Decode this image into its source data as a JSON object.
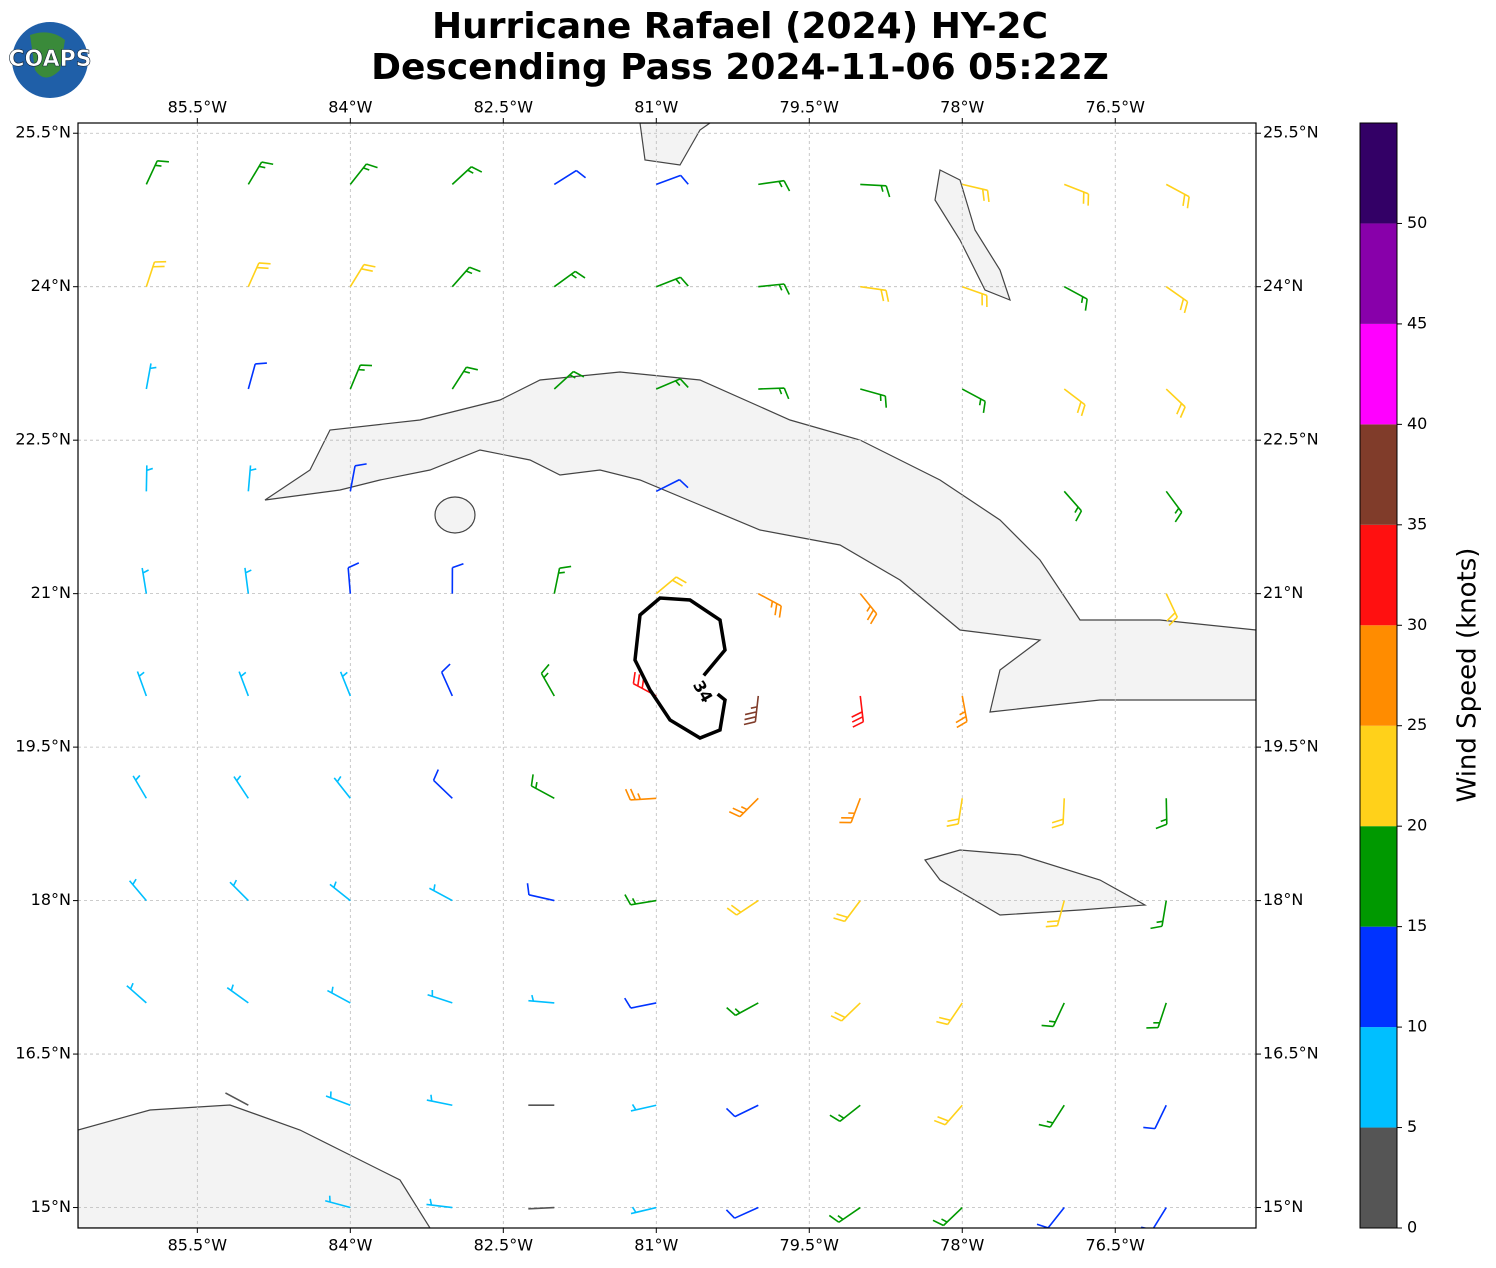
{
  "logo": "COAPS",
  "chart_data": {
    "type": "barbs",
    "title": [
      "Hurricane Rafael (2024) HY-2C",
      "Descending Pass 2024-11-06 05:22Z"
    ],
    "xlim": [
      -86.67,
      -75.12
    ],
    "xticks": [
      {
        "value": -85.5,
        "label": "85.5°W"
      },
      {
        "value": -84,
        "label": "84°W"
      },
      {
        "value": -82.5,
        "label": "82.5°W"
      },
      {
        "value": -81,
        "label": "81°W"
      },
      {
        "value": -79.5,
        "label": "79.5°W"
      },
      {
        "value": -78,
        "label": "78°W"
      },
      {
        "value": -76.5,
        "label": "76.5°W"
      }
    ],
    "ylim": [
      14.8,
      25.6
    ],
    "yticks": [
      {
        "value": 15,
        "label": "15°N"
      },
      {
        "value": 16.5,
        "label": "16.5°N"
      },
      {
        "value": 18,
        "label": "18°N"
      },
      {
        "value": 19.5,
        "label": "19.5°N"
      },
      {
        "value": 21,
        "label": "21°N"
      },
      {
        "value": 22.5,
        "label": "22.5°N"
      },
      {
        "value": 24,
        "label": "24°N"
      },
      {
        "value": 25.5,
        "label": "25.5°N"
      }
    ],
    "grid": true,
    "barbs": {
      "center": [
        -80.7,
        20.3
      ],
      "lon": [
        -86,
        -85,
        -84,
        -83,
        -82,
        -81,
        -80,
        -79,
        -78,
        -77,
        -76
      ],
      "lat": [
        25,
        24,
        23,
        22,
        21,
        20,
        19,
        18,
        17,
        16,
        15
      ],
      "speed": [
        [
          18,
          17,
          17,
          17,
          12,
          12,
          17,
          17,
          22,
          22,
          22
        ],
        [
          22,
          23,
          22,
          17,
          17,
          17,
          17,
          22,
          22,
          17,
          22
        ],
        [
          8,
          13,
          17,
          17,
          17,
          17,
          17,
          17,
          17,
          22,
          22
        ],
        [
          8,
          8,
          12,
          null,
          null,
          12,
          null,
          null,
          null,
          17,
          17
        ],
        [
          8,
          8,
          12,
          12,
          17,
          22,
          27,
          27,
          null,
          null,
          22
        ],
        [
          8,
          8,
          8,
          12,
          17,
          32,
          38,
          32,
          27,
          null,
          null
        ],
        [
          8,
          8,
          8,
          12,
          17,
          27,
          27,
          27,
          22,
          22,
          17
        ],
        [
          8,
          8,
          8,
          8,
          12,
          17,
          22,
          22,
          null,
          22,
          17
        ],
        [
          8,
          8,
          8,
          8,
          8,
          12,
          17,
          22,
          22,
          17,
          17
        ],
        [
          null,
          3,
          8,
          8,
          3,
          8,
          12,
          17,
          22,
          17,
          12
        ],
        [
          null,
          null,
          8,
          8,
          3,
          8,
          12,
          17,
          17,
          12,
          12
        ]
      ]
    },
    "contour_label": "34",
    "colorbar": {
      "label": "Wind Speed (knots)",
      "lim": [
        0,
        55
      ],
      "ticks": [
        0,
        5,
        10,
        15,
        20,
        25,
        30,
        35,
        40,
        45,
        50
      ],
      "colors": [
        "#555555",
        "#00bfff",
        "#0033ff",
        "#009900",
        "#ffd11a",
        "#ff8c00",
        "#ff1010",
        "#803c2a",
        "#ff00ff",
        "#8800aa",
        "#330066"
      ]
    }
  }
}
